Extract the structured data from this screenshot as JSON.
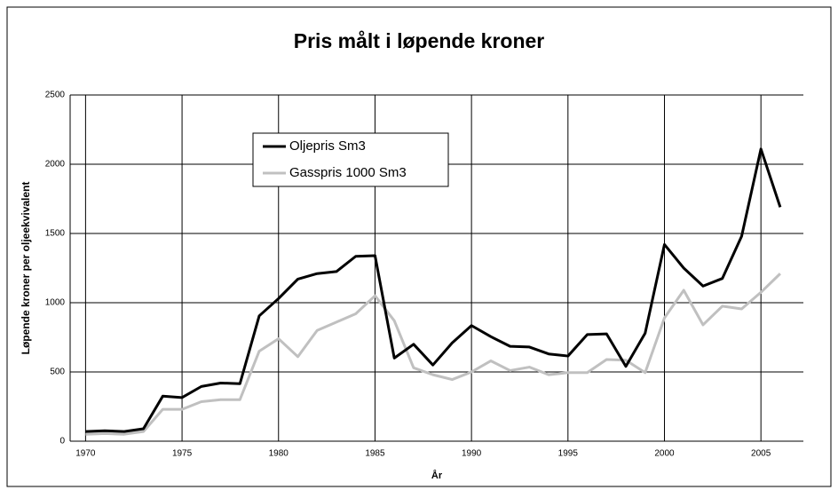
{
  "chart_data": {
    "type": "line",
    "title": "Pris målt i løpende kroner",
    "x_label": "År",
    "y_label": "Løpende kroner per oljeekvivalent",
    "x": [
      1970,
      1971,
      1972,
      1973,
      1974,
      1975,
      1976,
      1977,
      1978,
      1979,
      1980,
      1981,
      1982,
      1983,
      1984,
      1985,
      1986,
      1987,
      1988,
      1989,
      1990,
      1991,
      1992,
      1993,
      1994,
      1995,
      1996,
      1997,
      1998,
      1999,
      2000,
      2001,
      2002,
      2003,
      2004,
      2005,
      2006
    ],
    "series": [
      {
        "name": "Oljepris Sm3",
        "color": "#000000",
        "values": [
          70,
          75,
          70,
          90,
          325,
          315,
          395,
          420,
          415,
          905,
          1030,
          1170,
          1210,
          1225,
          1335,
          1340,
          600,
          700,
          550,
          710,
          835,
          755,
          685,
          680,
          630,
          615,
          770,
          775,
          540,
          780,
          1420,
          1250,
          1120,
          1175,
          1480,
          2110,
          1690
        ]
      },
      {
        "name": "Gasspris 1000 Sm3",
        "color": "#c0c0c0",
        "values": [
          50,
          55,
          50,
          70,
          230,
          230,
          285,
          300,
          300,
          650,
          740,
          610,
          800,
          860,
          920,
          1050,
          870,
          530,
          480,
          445,
          500,
          580,
          510,
          535,
          480,
          495,
          495,
          590,
          585,
          495,
          890,
          1090,
          840,
          975,
          955,
          1075,
          1210
        ]
      }
    ],
    "xlim": [
      1969.2,
      2007.2
    ],
    "xticks": [
      1970,
      1975,
      1980,
      1985,
      1990,
      1995,
      2000,
      2005
    ],
    "ylim": [
      0,
      2500
    ],
    "yticks": [
      0,
      500,
      1000,
      1500,
      2000,
      2500
    ],
    "grid": true
  }
}
